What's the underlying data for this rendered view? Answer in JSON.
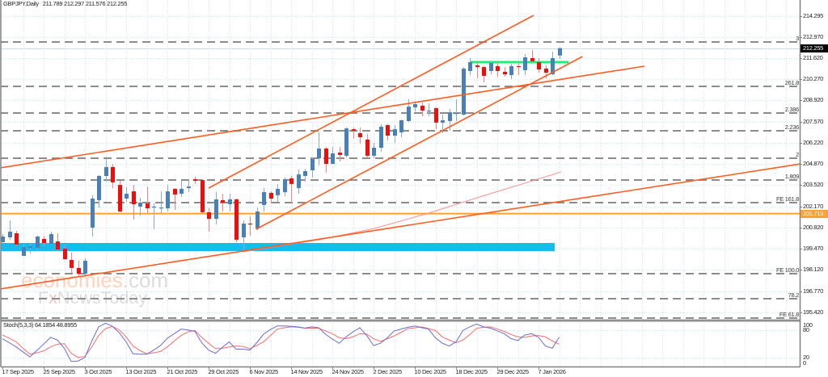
{
  "header": {
    "symbol_timeframe": "GBPJPY,Daily",
    "ohlc": "211.789 212.297 211.576 212.255"
  },
  "price_axis": {
    "ticks": [
      "214.295",
      "212.970",
      "211.620",
      "210.270",
      "208.920",
      "207.570",
      "206.220",
      "204.870",
      "203.520",
      "202.170",
      "200.820",
      "199.470",
      "198.120",
      "196.770",
      "195.420"
    ],
    "current_price_label": "212.255",
    "level_label": "201.713"
  },
  "stoch_panel": {
    "label": "Stoch(5,3,3) 64.1854 48.8955",
    "axis_ticks": [
      {
        "text": "100",
        "value": 100
      },
      {
        "text": "80",
        "value": 80
      },
      {
        "text": "20",
        "value": 20
      },
      {
        "text": "0",
        "value": 0
      }
    ]
  },
  "time_axis": {
    "labels": [
      {
        "text": "17 Sep 2025",
        "bar": 0
      },
      {
        "text": "25 Sep 2025",
        "bar": 6
      },
      {
        "text": "3 Oct 2025",
        "bar": 12
      },
      {
        "text": "13 Oct 2025",
        "bar": 18
      },
      {
        "text": "21 Oct 2025",
        "bar": 24
      },
      {
        "text": "29 Oct 2025",
        "bar": 30
      },
      {
        "text": "6 Nov 2025",
        "bar": 36
      },
      {
        "text": "14 Nov 2025",
        "bar": 42
      },
      {
        "text": "24 Nov 2025",
        "bar": 48
      },
      {
        "text": "2 Dec 2025",
        "bar": 54
      },
      {
        "text": "10 Dec 2025",
        "bar": 60
      },
      {
        "text": "18 Dec 2025",
        "bar": 66
      },
      {
        "text": "29 Dec 2025",
        "bar": 72
      },
      {
        "text": "7 Jan 2026",
        "bar": 78
      }
    ]
  },
  "watermark": {
    "brand": "economies",
    "brand_suffix": ".com",
    "sub_prefix": "F",
    "sub_x": "x",
    "sub_rest": "NewsToday"
  },
  "colors": {
    "bull": "#4a80b8",
    "bear": "#f20d0d",
    "bull_wick": "#86acd2",
    "bear_wick": "#ff7f7f",
    "trendline": "#ff5b1f",
    "ma": "#ff9090",
    "level_line": "#ffa033",
    "support_band": "#12bdf2",
    "green_line": "#1fee78",
    "fibo": "#8c8c8c",
    "grid": "#c7e3ec",
    "stoch_k": "#6b6bd6",
    "stoch_d": "#ff6b6b",
    "bid_line": "#c9dde9",
    "axis": "#808080",
    "watermark_brand": "#ffd3bb",
    "watermark_gray": "#dcdcdc",
    "watermark_x": "#f2c6c6"
  },
  "chart_data": {
    "type": "candlestick",
    "title": "GBPJPY,Daily",
    "symbol": "GBPJPY",
    "timeframe": "Daily",
    "ylim": [
      195.05,
      214.35
    ],
    "y_ticks": [
      214.295,
      212.97,
      211.62,
      210.27,
      208.92,
      207.57,
      206.22,
      204.87,
      203.52,
      202.17,
      200.82,
      199.47,
      198.12,
      196.77,
      195.42
    ],
    "x_tick_labels": [
      "17 Sep 2025",
      "25 Sep 2025",
      "3 Oct 2025",
      "13 Oct 2025",
      "21 Oct 2025",
      "29 Oct 2025",
      "6 Nov 2025",
      "14 Nov 2025",
      "24 Nov 2025",
      "2 Dec 2025",
      "10 Dec 2025",
      "18 Dec 2025",
      "29 Dec 2025",
      "7 Jan 2026"
    ],
    "ohlc_fields": [
      "open",
      "high",
      "low",
      "close"
    ],
    "ohlc": [
      [
        199.89,
        200.41,
        199.79,
        200.25
      ],
      [
        200.2,
        201.28,
        200.05,
        200.56
      ],
      [
        200.46,
        200.61,
        199.63,
        199.74
      ],
      [
        199.02,
        199.74,
        199.02,
        199.58
      ],
      [
        199.53,
        199.79,
        199.17,
        199.63
      ],
      [
        199.53,
        200.3,
        199.43,
        200.25
      ],
      [
        200.1,
        200.3,
        199.63,
        199.84
      ],
      [
        199.79,
        200.56,
        199.74,
        200.41
      ],
      [
        199.94,
        200.46,
        199.38,
        199.43
      ],
      [
        199.48,
        199.74,
        198.76,
        198.81
      ],
      [
        198.76,
        199.22,
        197.94,
        198.25
      ],
      [
        198.25,
        198.71,
        197.73,
        197.89
      ],
      [
        197.89,
        198.86,
        197.73,
        198.71
      ],
      [
        200.82,
        202.88,
        200.25,
        202.67
      ],
      [
        202.57,
        204.16,
        202.1,
        204.11
      ],
      [
        204.11,
        205.34,
        203.75,
        204.68
      ],
      [
        204.68,
        204.88,
        203.34,
        203.7
      ],
      [
        203.54,
        203.8,
        201.8,
        201.85
      ],
      [
        202.67,
        203.39,
        202.46,
        202.98
      ],
      [
        203.13,
        203.54,
        201.33,
        202.31
      ],
      [
        202.16,
        202.72,
        201.59,
        202.41
      ],
      [
        202.36,
        203.44,
        201.74,
        202.05
      ],
      [
        202.1,
        202.36,
        200.72,
        202.16
      ],
      [
        202.05,
        203.13,
        201.74,
        202.1
      ],
      [
        202.05,
        203.54,
        201.85,
        203.13
      ],
      [
        203.29,
        203.34,
        201.95,
        202.93
      ],
      [
        202.98,
        203.8,
        202.77,
        203.29
      ],
      [
        203.34,
        203.8,
        203.08,
        203.44
      ],
      [
        203.91,
        204.06,
        203.6,
        203.8
      ],
      [
        203.85,
        203.91,
        201.74,
        201.8
      ],
      [
        201.8,
        202.05,
        200.56,
        201.38
      ],
      [
        201.38,
        203.08,
        201.02,
        202.62
      ],
      [
        202.57,
        202.98,
        201.85,
        202.41
      ],
      [
        202.31,
        202.98,
        201.85,
        202.62
      ],
      [
        202.62,
        202.67,
        199.89,
        200.05
      ],
      [
        200.2,
        201.28,
        199.38,
        201.08
      ],
      [
        201.08,
        201.54,
        200.3,
        201.02
      ],
      [
        200.77,
        202.1,
        200.66,
        201.85
      ],
      [
        202.26,
        203.34,
        201.85,
        203.08
      ],
      [
        203.03,
        203.13,
        202.36,
        202.67
      ],
      [
        202.88,
        203.6,
        202.46,
        203.29
      ],
      [
        203.08,
        204.01,
        202.82,
        203.91
      ],
      [
        203.96,
        204.11,
        202.36,
        203.6
      ],
      [
        203.34,
        204.52,
        202.98,
        204.21
      ],
      [
        204.11,
        204.57,
        203.75,
        204.42
      ],
      [
        204.47,
        205.29,
        204.01,
        205.19
      ],
      [
        205.24,
        206.89,
        204.78,
        205.86
      ],
      [
        205.86,
        205.96,
        204.32,
        204.88
      ],
      [
        204.88,
        205.96,
        204.88,
        205.55
      ],
      [
        205.6,
        205.96,
        205.04,
        205.45
      ],
      [
        205.4,
        207.2,
        205.29,
        207.14
      ],
      [
        207.09,
        207.2,
        206.48,
        206.99
      ],
      [
        206.84,
        207.2,
        206.17,
        206.58
      ],
      [
        206.43,
        206.79,
        205.24,
        205.4
      ],
      [
        205.4,
        206.22,
        205.24,
        205.91
      ],
      [
        205.91,
        207.4,
        205.65,
        207.25
      ],
      [
        207.35,
        207.4,
        206.37,
        206.68
      ],
      [
        206.68,
        207.35,
        206.22,
        207.09
      ],
      [
        206.89,
        207.71,
        206.58,
        207.66
      ],
      [
        207.61,
        209.0,
        207.56,
        208.53
      ],
      [
        208.48,
        208.89,
        208.23,
        208.69
      ],
      [
        208.59,
        208.79,
        207.92,
        208.28
      ],
      [
        208.23,
        208.74,
        207.92,
        208.28
      ],
      [
        208.43,
        208.48,
        207.09,
        207.51
      ],
      [
        207.51,
        208.02,
        206.84,
        207.66
      ],
      [
        207.61,
        208.38,
        206.99,
        208.17
      ],
      [
        208.07,
        209.0,
        207.61,
        208.12
      ],
      [
        208.02,
        211.05,
        207.97,
        210.95
      ],
      [
        210.8,
        211.62,
        210.54,
        211.36
      ],
      [
        211.16,
        211.42,
        210.33,
        211.05
      ],
      [
        211.05,
        211.11,
        210.08,
        210.49
      ],
      [
        210.8,
        211.42,
        210.59,
        211.31
      ],
      [
        211.11,
        211.36,
        210.44,
        210.8
      ],
      [
        210.75,
        211.05,
        210.44,
        210.59
      ],
      [
        210.54,
        211.26,
        210.28,
        211.11
      ],
      [
        211.11,
        211.36,
        210.54,
        211.05
      ],
      [
        210.85,
        211.88,
        210.54,
        211.67
      ],
      [
        211.62,
        212.14,
        211.31,
        211.42
      ],
      [
        211.36,
        211.62,
        210.69,
        210.9
      ],
      [
        210.95,
        211.16,
        210.33,
        210.69
      ],
      [
        210.59,
        212.03,
        210.54,
        211.62
      ],
      [
        211.789,
        212.297,
        211.576,
        212.255
      ]
    ],
    "last_bar": {
      "open": 211.789,
      "high": 212.297,
      "low": 211.576,
      "close": 212.255
    },
    "indicators": {
      "stochastic": {
        "params": "5,3,3",
        "ylim": [
          0,
          100
        ],
        "levels": [
          20,
          80
        ],
        "k_last": 64.1854,
        "d_last": 48.8955,
        "k": [
          61,
          52,
          43,
          32,
          21,
          35,
          49,
          64,
          58,
          40,
          11,
          12,
          20,
          56,
          87,
          95,
          88,
          74,
          54,
          28,
          27,
          27,
          36,
          46,
          62,
          72,
          82,
          80,
          77,
          52,
          36,
          29,
          42,
          54,
          38,
          38,
          36,
          52,
          71,
          81,
          89,
          89,
          88,
          87,
          84,
          87,
          85,
          71,
          60,
          51,
          65,
          76,
          85,
          68,
          46,
          51,
          63,
          78,
          82,
          86,
          89,
          85,
          82,
          63,
          51,
          45,
          54,
          79,
          87,
          93,
          87,
          84,
          78,
          72,
          61,
          57,
          69,
          72,
          64,
          45,
          40,
          64.1854
        ],
        "d": [
          69,
          62,
          54,
          40,
          27,
          30,
          34,
          43,
          49,
          50,
          29,
          20,
          22,
          43,
          68,
          83,
          88,
          80,
          65,
          45,
          35,
          28,
          30,
          33,
          43,
          56,
          68,
          76,
          79,
          64,
          51,
          39,
          40,
          43,
          45,
          44,
          39,
          46,
          54,
          68,
          82,
          85,
          87,
          86,
          84,
          84,
          84,
          78,
          72,
          63,
          61,
          65,
          72,
          71,
          61,
          55,
          61,
          67,
          75,
          83,
          85,
          87,
          83,
          79,
          65,
          58,
          52,
          58,
          70,
          84,
          86,
          87,
          82,
          77,
          70,
          65,
          64,
          67,
          68,
          65,
          56,
          48.8955
        ]
      }
    },
    "objects": {
      "fibo_levels": [
        {
          "label": "3",
          "price": 212.649
        },
        {
          "label": "261.8",
          "price": 209.794
        },
        {
          "label": "2.386",
          "price": 208.122
        },
        {
          "label": "2.236",
          "price": 206.965
        },
        {
          "label": "2",
          "price": 205.242
        },
        {
          "label": "1.809",
          "price": 203.853
        },
        {
          "label": "FE 161.8",
          "price": 202.412
        },
        {
          "label": "FE 100.0",
          "price": 197.886
        },
        {
          "label": "78.2",
          "price": 196.29
        },
        {
          "label": "FE 61.8",
          "price": 195.056
        }
      ],
      "trendlines": [
        {
          "name": "upper-long-trendline",
          "from": [
            -0.35,
            204.625
          ],
          "to": [
            93.4,
            211.106
          ]
        },
        {
          "name": "channel-upper-trendline",
          "from": [
            30,
            203.339
          ],
          "to": [
            77.3,
            214.347
          ]
        },
        {
          "name": "channel-lower-trendline",
          "from": [
            36.9,
            200.715
          ],
          "to": [
            84.4,
            211.723
          ]
        },
        {
          "name": "lower-long-trendline",
          "from": [
            -0.35,
            196.908
          ],
          "to": [
            116,
            204.87
          ]
        }
      ],
      "moving_average": [
        [
          34.9,
          199.275
        ],
        [
          46.7,
          200.098
        ],
        [
          54.1,
          200.766
        ],
        [
          61.6,
          201.692
        ],
        [
          70.2,
          202.876
        ],
        [
          81.3,
          204.367
        ]
      ],
      "horizontal_level": {
        "price": 201.713
      },
      "support_zone": {
        "from_bar": -0.35,
        "to_bar": 80.35,
        "price_low": 199.326,
        "price_high": 199.84
      },
      "resistance_line": {
        "from_bar": 68.1,
        "to_bar": 82.4,
        "price": 211.363
      },
      "bid_line": {
        "price": 212.255
      }
    }
  }
}
